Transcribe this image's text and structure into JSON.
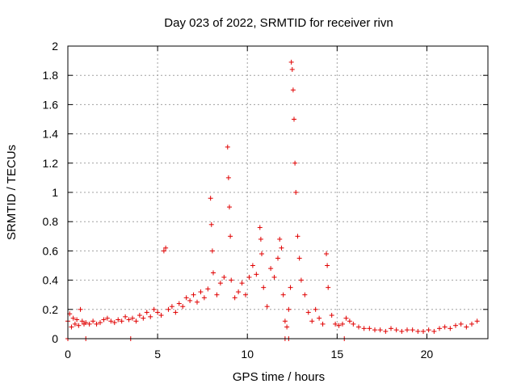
{
  "chart_data": {
    "type": "scatter",
    "title": "Day 023 of 2022, SRMTID for receiver rivn",
    "xlabel": "GPS time / hours",
    "ylabel": "SRMTID / TECUs",
    "xlim": [
      0,
      23.4
    ],
    "ylim": [
      0,
      2
    ],
    "xticks": [
      0,
      5,
      10,
      15,
      20
    ],
    "xtick_labels": [
      "0",
      "5",
      "10",
      "15",
      "20"
    ],
    "yticks": [
      0,
      0.2,
      0.4,
      0.6,
      0.8,
      1,
      1.2,
      1.4,
      1.6,
      1.8,
      2
    ],
    "ytick_labels": [
      "0",
      "0.2",
      "0.4",
      "0.6",
      "0.8",
      "1",
      "1.2",
      "1.4",
      "1.6",
      "1.8",
      "2"
    ],
    "grid": true,
    "marker": "+",
    "color": "#e00000",
    "series": [
      {
        "name": "SRMTID",
        "x": [
          0.0,
          0.1,
          0.2,
          0.3,
          0.4,
          0.5,
          0.6,
          0.7,
          0.8,
          0.9,
          1.0,
          1.2,
          1.4,
          1.6,
          1.8,
          2.0,
          2.2,
          2.4,
          2.6,
          2.8,
          3.0,
          3.2,
          3.4,
          3.6,
          3.8,
          4.0,
          4.2,
          4.4,
          4.6,
          4.8,
          5.0,
          5.2,
          5.35,
          5.45,
          5.6,
          5.8,
          6.0,
          6.2,
          6.4,
          6.6,
          6.8,
          7.0,
          7.2,
          7.4,
          7.6,
          7.8,
          7.95,
          8.0,
          8.05,
          8.1,
          8.3,
          8.5,
          8.7,
          8.9,
          8.95,
          9.0,
          9.05,
          9.1,
          9.3,
          9.5,
          9.7,
          9.9,
          10.1,
          10.3,
          10.5,
          10.7,
          10.75,
          10.8,
          10.9,
          11.1,
          11.3,
          11.5,
          11.7,
          11.8,
          11.9,
          12.0,
          12.1,
          12.2,
          12.3,
          12.4,
          12.45,
          12.5,
          12.55,
          12.6,
          12.65,
          12.7,
          12.8,
          12.9,
          13.0,
          13.2,
          13.4,
          13.6,
          13.8,
          14.0,
          14.2,
          14.4,
          14.45,
          14.5,
          14.7,
          14.9,
          15.1,
          15.3,
          15.5,
          15.7,
          15.9,
          16.2,
          16.5,
          16.8,
          17.1,
          17.4,
          17.7,
          18.0,
          18.3,
          18.6,
          18.9,
          19.2,
          19.5,
          19.8,
          20.1,
          20.4,
          20.7,
          21.0,
          21.3,
          21.6,
          21.9,
          22.2,
          22.5,
          22.8,
          0.0,
          1.0,
          3.5,
          12.1,
          12.3,
          15.4
        ],
        "y": [
          0.12,
          0.17,
          0.08,
          0.14,
          0.1,
          0.13,
          0.09,
          0.2,
          0.12,
          0.1,
          0.11,
          0.1,
          0.12,
          0.1,
          0.11,
          0.13,
          0.14,
          0.12,
          0.11,
          0.13,
          0.12,
          0.15,
          0.13,
          0.14,
          0.12,
          0.16,
          0.14,
          0.18,
          0.15,
          0.2,
          0.18,
          0.16,
          0.6,
          0.62,
          0.2,
          0.22,
          0.18,
          0.24,
          0.22,
          0.28,
          0.26,
          0.3,
          0.25,
          0.32,
          0.28,
          0.34,
          0.96,
          0.78,
          0.6,
          0.45,
          0.3,
          0.38,
          0.42,
          1.31,
          1.1,
          0.9,
          0.7,
          0.4,
          0.28,
          0.32,
          0.38,
          0.3,
          0.42,
          0.5,
          0.44,
          0.76,
          0.68,
          0.58,
          0.35,
          0.22,
          0.48,
          0.42,
          0.55,
          0.68,
          0.62,
          0.3,
          0.12,
          0.08,
          0.2,
          0.35,
          1.89,
          1.84,
          1.7,
          1.5,
          1.2,
          1.0,
          0.7,
          0.55,
          0.4,
          0.3,
          0.18,
          0.12,
          0.2,
          0.14,
          0.1,
          0.58,
          0.5,
          0.35,
          0.16,
          0.1,
          0.09,
          0.1,
          0.14,
          0.12,
          0.1,
          0.08,
          0.07,
          0.07,
          0.06,
          0.06,
          0.05,
          0.07,
          0.06,
          0.05,
          0.06,
          0.06,
          0.05,
          0.05,
          0.06,
          0.05,
          0.07,
          0.08,
          0.07,
          0.09,
          0.1,
          0.08,
          0.1,
          0.12,
          0.0,
          0.0,
          0.0,
          0.0,
          0.0,
          0.0
        ]
      }
    ]
  }
}
